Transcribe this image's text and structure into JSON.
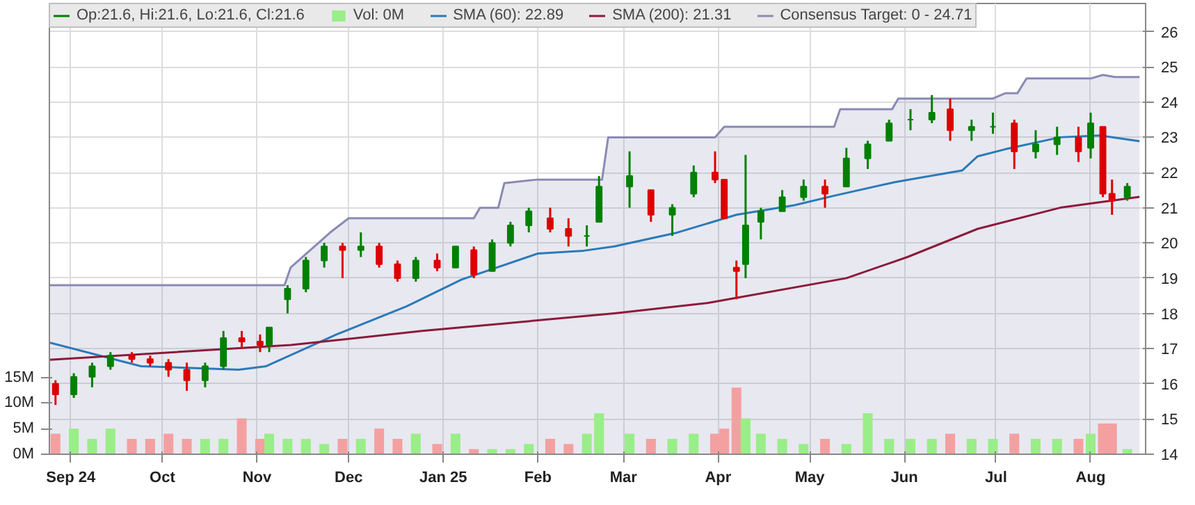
{
  "chart_data": {
    "type": "candlestick",
    "xlim": [
      "2024-08-25",
      "2025-08-19"
    ],
    "ylim": [
      14,
      26.8
    ],
    "yticks": [
      14,
      15,
      16,
      17,
      18,
      19,
      20,
      21,
      22,
      23,
      24,
      25,
      26
    ],
    "y2lim": [
      0,
      88
    ],
    "y2ticks": [
      {
        "value": 0,
        "label": "0M"
      },
      {
        "value": 5,
        "label": "5M"
      },
      {
        "value": 10,
        "label": "10M"
      },
      {
        "value": 15,
        "label": "15M"
      }
    ],
    "xticks": [
      {
        "value": "2024-09-01",
        "label": "Sep 24"
      },
      {
        "value": "2024-10-01",
        "label": "Oct"
      },
      {
        "value": "2024-11-01",
        "label": "Nov"
      },
      {
        "value": "2024-12-01",
        "label": "Dec"
      },
      {
        "value": "2025-01-01",
        "label": "Jan 25"
      },
      {
        "value": "2025-02-01",
        "label": "Feb"
      },
      {
        "value": "2025-03-01",
        "label": "Mar"
      },
      {
        "value": "2025-04-01",
        "label": "Apr"
      },
      {
        "value": "2025-05-01",
        "label": "May"
      },
      {
        "value": "2025-06-01",
        "label": "Jun"
      },
      {
        "value": "2025-07-01",
        "label": "Jul"
      },
      {
        "value": "2025-08-01",
        "label": "Aug"
      }
    ],
    "grid": true,
    "legend": "top",
    "x": [
      "2024-08-27",
      "2024-09-02",
      "2024-09-08",
      "2024-09-14",
      "2024-09-21",
      "2024-09-27",
      "2024-10-03",
      "2024-10-09",
      "2024-10-15",
      "2024-10-21",
      "2024-10-27",
      "2024-11-02",
      "2024-11-05",
      "2024-11-11",
      "2024-11-17",
      "2024-11-23",
      "2024-11-29",
      "2024-12-05",
      "2024-12-11",
      "2024-12-17",
      "2024-12-23",
      "2024-12-30",
      "2025-01-05",
      "2025-01-11",
      "2025-01-17",
      "2025-01-23",
      "2025-01-29",
      "2025-02-05",
      "2025-02-11",
      "2025-02-17",
      "2025-02-21",
      "2025-03-03",
      "2025-03-10",
      "2025-03-17",
      "2025-03-24",
      "2025-03-31",
      "2025-04-03",
      "2025-04-07",
      "2025-04-10",
      "2025-04-15",
      "2025-04-22",
      "2025-04-29",
      "2025-05-06",
      "2025-05-13",
      "2025-05-20",
      "2025-05-27",
      "2025-06-03",
      "2025-06-10",
      "2025-06-16",
      "2025-06-23",
      "2025-06-30",
      "2025-07-07",
      "2025-07-14",
      "2025-07-21",
      "2025-07-28",
      "2025-08-01",
      "2025-08-05",
      "2025-08-08",
      "2025-08-13"
    ],
    "series": [
      {
        "type": "area",
        "name": "Consensus Target: 0 - 24.71",
        "color": "#8a8ab4",
        "x": [
          "2024-08-25",
          "2024-11-10",
          "2024-11-12",
          "2024-11-25",
          "2024-12-01",
          "2025-01-11",
          "2025-01-13",
          "2025-01-19",
          "2025-01-21",
          "2025-02-01",
          "2025-02-22",
          "2025-02-24",
          "2025-03-31",
          "2025-04-03",
          "2025-05-09",
          "2025-05-11",
          "2025-05-28",
          "2025-05-30",
          "2025-06-30",
          "2025-07-04",
          "2025-07-08",
          "2025-07-11",
          "2025-08-01",
          "2025-08-05",
          "2025-08-09",
          "2025-08-17"
        ],
        "values": [
          18.8,
          18.8,
          19.3,
          20.3,
          20.7,
          20.7,
          21.0,
          21.0,
          21.7,
          21.8,
          21.8,
          23.0,
          23.0,
          23.3,
          23.3,
          23.8,
          23.8,
          24.1,
          24.1,
          24.25,
          24.25,
          24.67,
          24.67,
          24.77,
          24.71,
          24.71
        ]
      },
      {
        "type": "bar",
        "name": "Vol: 0M",
        "axis": "y2",
        "color": "#99ee88",
        "values": [
          4,
          5,
          3,
          5,
          3,
          3,
          4,
          3,
          3,
          3,
          7,
          3,
          4,
          3,
          3,
          2,
          3,
          3,
          5,
          3,
          4,
          2,
          4,
          1,
          1,
          1,
          2,
          3,
          2,
          4,
          8,
          4,
          3,
          3,
          4,
          4,
          5,
          13,
          7,
          4,
          3,
          2,
          3,
          2,
          8,
          3,
          3,
          3,
          4,
          3,
          3,
          4,
          3,
          3,
          3,
          4,
          6,
          6,
          1
        ],
        "colors": [
          "#f4a0a0",
          "#99ee88",
          "#99ee88",
          "#99ee88",
          "#f4a0a0",
          "#f4a0a0",
          "#f4a0a0",
          "#f4a0a0",
          "#99ee88",
          "#99ee88",
          "#f4a0a0",
          "#f4a0a0",
          "#99ee88",
          "#99ee88",
          "#99ee88",
          "#99ee88",
          "#f4a0a0",
          "#99ee88",
          "#f4a0a0",
          "#f4a0a0",
          "#99ee88",
          "#f4a0a0",
          "#99ee88",
          "#f4a0a0",
          "#99ee88",
          "#99ee88",
          "#99ee88",
          "#f4a0a0",
          "#f4a0a0",
          "#99ee88",
          "#99ee88",
          "#99ee88",
          "#f4a0a0",
          "#99ee88",
          "#99ee88",
          "#f4a0a0",
          "#f4a0a0",
          "#f4a0a0",
          "#99ee88",
          "#99ee88",
          "#99ee88",
          "#99ee88",
          "#f4a0a0",
          "#99ee88",
          "#99ee88",
          "#99ee88",
          "#99ee88",
          "#99ee88",
          "#f4a0a0",
          "#99ee88",
          "#99ee88",
          "#f4a0a0",
          "#99ee88",
          "#99ee88",
          "#f4a0a0",
          "#99ee88",
          "#f4a0a0",
          "#f4a0a0",
          "#99ee88"
        ]
      },
      {
        "type": "line",
        "name": "SMA (60): 22.89",
        "color": "#2a7ab8",
        "x": [
          "2024-08-25",
          "2024-09-24",
          "2024-10-26",
          "2024-11-04",
          "2024-11-27",
          "2024-12-20",
          "2025-01-07",
          "2025-02-01",
          "2025-02-16",
          "2025-02-26",
          "2025-03-18",
          "2025-04-07",
          "2025-04-26",
          "2025-05-09",
          "2025-05-29",
          "2025-06-20",
          "2025-06-25",
          "2025-07-04",
          "2025-07-22",
          "2025-08-04",
          "2025-08-17"
        ],
        "values": [
          17.17,
          16.5,
          16.4,
          16.5,
          17.4,
          18.2,
          18.96,
          19.7,
          19.78,
          19.9,
          20.28,
          20.8,
          21.07,
          21.34,
          21.73,
          22.06,
          22.46,
          22.66,
          23.0,
          23.05,
          22.89
        ]
      },
      {
        "type": "line",
        "name": "SMA (200): 21.31",
        "color": "#8b1a3a",
        "x": [
          "2024-08-25",
          "2024-11-12",
          "2024-12-25",
          "2025-02-26",
          "2025-03-29",
          "2025-05-13",
          "2025-06-02",
          "2025-06-25",
          "2025-07-22",
          "2025-08-17"
        ],
        "values": [
          16.68,
          17.1,
          17.5,
          18.0,
          18.3,
          19.0,
          19.6,
          20.4,
          21.0,
          21.31
        ]
      },
      {
        "name": "Op:21.6, Hi:21.6, Lo:21.6, Cl:21.6",
        "color": "#008000",
        "colors": [
          "#dd0000",
          "#008000",
          "#008000",
          "#008000",
          "#dd0000",
          "#dd0000",
          "#dd0000",
          "#dd0000",
          "#008000",
          "#008000",
          "#dd0000",
          "#dd0000",
          "#008000",
          "#008000",
          "#008000",
          "#008000",
          "#dd0000",
          "#008000",
          "#dd0000",
          "#dd0000",
          "#008000",
          "#dd0000",
          "#008000",
          "#dd0000",
          "#008000",
          "#008000",
          "#008000",
          "#dd0000",
          "#dd0000",
          "#008000",
          "#008000",
          "#008000",
          "#dd0000",
          "#008000",
          "#008000",
          "#dd0000",
          "#dd0000",
          "#dd0000",
          "#008000",
          "#008000",
          "#008000",
          "#008000",
          "#dd0000",
          "#008000",
          "#008000",
          "#008000",
          "#008000",
          "#008000",
          "#dd0000",
          "#008000",
          "#008000",
          "#dd0000",
          "#008000",
          "#008000",
          "#dd0000",
          "#008000",
          "#dd0000",
          "#dd0000",
          "#008000"
        ],
        "ohlc": [
          [
            16.0,
            16.1,
            15.4,
            15.7
          ],
          [
            15.7,
            16.3,
            15.6,
            16.2
          ],
          [
            16.2,
            16.6,
            15.9,
            16.5
          ],
          [
            16.5,
            16.9,
            16.4,
            16.8
          ],
          [
            16.8,
            16.9,
            16.6,
            16.7
          ],
          [
            16.7,
            16.8,
            16.5,
            16.6
          ],
          [
            16.6,
            16.7,
            16.2,
            16.4
          ],
          [
            16.4,
            16.6,
            15.8,
            16.1
          ],
          [
            16.1,
            16.6,
            15.9,
            16.5
          ],
          [
            16.5,
            17.5,
            16.4,
            17.3
          ],
          [
            17.3,
            17.5,
            17.0,
            17.2
          ],
          [
            17.2,
            17.4,
            16.9,
            17.1
          ],
          [
            17.1,
            17.6,
            16.9,
            17.6
          ],
          [
            18.4,
            18.8,
            18.0,
            18.7
          ],
          [
            18.7,
            19.6,
            18.6,
            19.5
          ],
          [
            19.5,
            20.0,
            19.3,
            19.9
          ],
          [
            19.9,
            20.0,
            19.0,
            19.8
          ],
          [
            19.8,
            20.3,
            19.6,
            19.9
          ],
          [
            19.9,
            20.0,
            19.3,
            19.4
          ],
          [
            19.4,
            19.5,
            18.9,
            19.0
          ],
          [
            19.0,
            19.6,
            18.9,
            19.5
          ],
          [
            19.5,
            19.7,
            19.2,
            19.3
          ],
          [
            19.3,
            19.9,
            19.3,
            19.9
          ],
          [
            19.8,
            19.9,
            19.0,
            19.1
          ],
          [
            19.2,
            20.1,
            19.2,
            20.0
          ],
          [
            20.0,
            20.6,
            19.9,
            20.5
          ],
          [
            20.5,
            21.0,
            20.3,
            20.9
          ],
          [
            20.7,
            21.0,
            20.3,
            20.4
          ],
          [
            20.4,
            20.7,
            19.9,
            20.2
          ],
          [
            20.2,
            20.5,
            19.9,
            20.2
          ],
          [
            20.6,
            21.9,
            20.6,
            21.6
          ],
          [
            21.6,
            22.6,
            21.0,
            21.9
          ],
          [
            21.5,
            21.5,
            20.6,
            20.8
          ],
          [
            20.8,
            21.1,
            20.2,
            21.0
          ],
          [
            21.4,
            22.2,
            21.3,
            22.0
          ],
          [
            22.0,
            22.6,
            21.7,
            21.8
          ],
          [
            21.8,
            21.8,
            20.7,
            20.7
          ],
          [
            19.3,
            19.5,
            18.4,
            19.2
          ],
          [
            19.4,
            22.5,
            19.0,
            20.5
          ],
          [
            20.6,
            21.0,
            20.1,
            20.9
          ],
          [
            20.9,
            21.5,
            20.9,
            21.3
          ],
          [
            21.3,
            21.8,
            21.2,
            21.6
          ],
          [
            21.6,
            21.8,
            21.0,
            21.4
          ],
          [
            21.6,
            22.7,
            21.6,
            22.4
          ],
          [
            22.4,
            22.9,
            22.1,
            22.8
          ],
          [
            22.9,
            23.5,
            22.9,
            23.4
          ],
          [
            23.5,
            23.8,
            23.2,
            23.5
          ],
          [
            23.5,
            24.2,
            23.4,
            23.7
          ],
          [
            23.8,
            24.1,
            22.9,
            23.2
          ],
          [
            23.2,
            23.5,
            22.9,
            23.3
          ],
          [
            23.3,
            23.7,
            23.1,
            23.3
          ],
          [
            23.4,
            23.5,
            22.1,
            22.6
          ],
          [
            22.6,
            23.2,
            22.4,
            22.8
          ],
          [
            22.8,
            23.3,
            22.5,
            23.0
          ],
          [
            23.0,
            23.3,
            22.3,
            22.6
          ],
          [
            22.7,
            23.7,
            22.4,
            23.4
          ],
          [
            23.3,
            23.3,
            21.3,
            21.4
          ],
          [
            21.4,
            21.8,
            20.8,
            21.2
          ],
          [
            21.3,
            21.7,
            21.2,
            21.6
          ]
        ]
      }
    ]
  }
}
